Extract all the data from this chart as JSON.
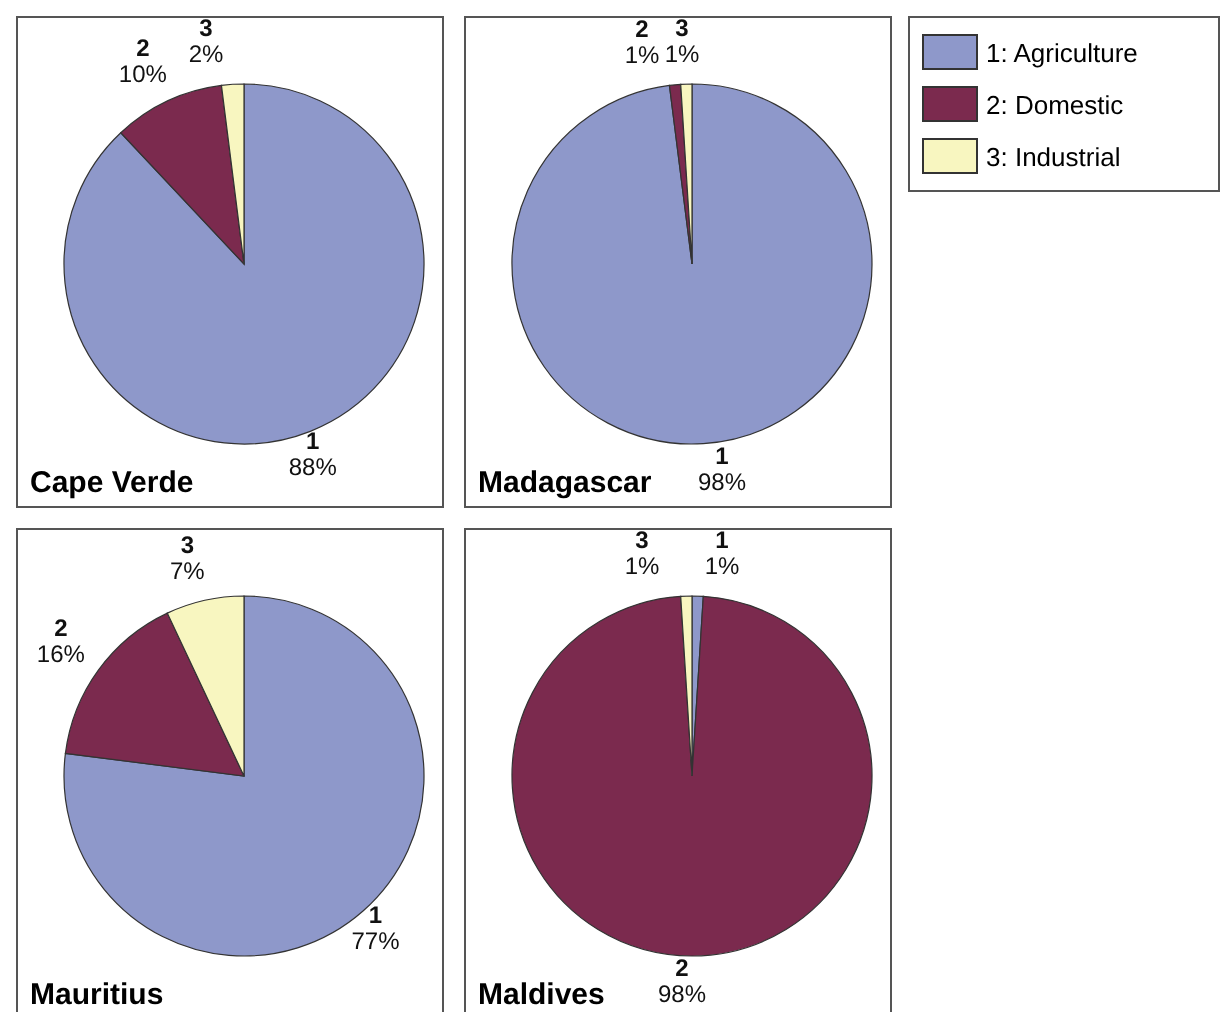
{
  "chart_data": [
    {
      "type": "pie",
      "title": "Cape Verde",
      "categories": [
        "1",
        "2",
        "3"
      ],
      "values": [
        88,
        10,
        2
      ],
      "value_labels": [
        "88%",
        "10%",
        "2%"
      ],
      "colors": [
        "#8e98ca",
        "#7b2a4e",
        "#f8f6c0"
      ]
    },
    {
      "type": "pie",
      "title": "Madagascar",
      "categories": [
        "1",
        "2",
        "3"
      ],
      "values": [
        98,
        1,
        1
      ],
      "value_labels": [
        "98%",
        "1%",
        "1%"
      ],
      "colors": [
        "#8e98ca",
        "#7b2a4e",
        "#f8f6c0"
      ]
    },
    {
      "type": "pie",
      "title": "Mauritius",
      "categories": [
        "1",
        "2",
        "3"
      ],
      "values": [
        77,
        16,
        7
      ],
      "value_labels": [
        "77%",
        "16%",
        "7%"
      ],
      "colors": [
        "#8e98ca",
        "#7b2a4e",
        "#f8f6c0"
      ]
    },
    {
      "type": "pie",
      "title": "Maldives",
      "categories": [
        "1",
        "2",
        "3"
      ],
      "values": [
        1,
        98,
        1
      ],
      "value_labels": [
        "1%",
        "98%",
        "1%"
      ],
      "colors": [
        "#8e98ca",
        "#7b2a4e",
        "#f8f6c0"
      ]
    },
    {
      "type": "other",
      "categories": [
        "1: Agriculture",
        "2: Domestic",
        "3: Industrial"
      ],
      "colors": [
        "#8e98ca",
        "#7b2a4e",
        "#f8f6c0"
      ]
    }
  ]
}
